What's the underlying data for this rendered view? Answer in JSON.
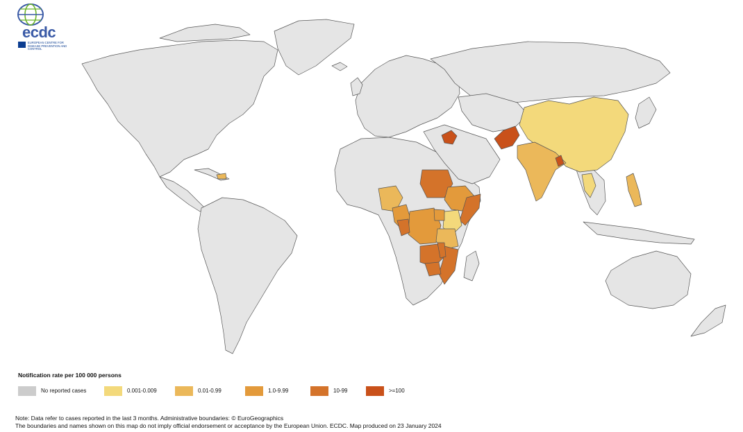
{
  "logo": {
    "name": "ecdc",
    "org_name": "EUROPEAN CENTRE FOR DISEASE PREVENTION AND CONTROL",
    "colors": {
      "text": "#3a5aa6",
      "accent": "#6bb42a",
      "flag": "#0b3d91"
    }
  },
  "legend": {
    "title": "Notification rate per 100 000 persons",
    "items": [
      {
        "label": "No reported cases",
        "color": "#cccccc"
      },
      {
        "label": "0.001-0.009",
        "color": "#f3d97b"
      },
      {
        "label": "0.01-0.99",
        "color": "#ebb85a"
      },
      {
        "label": "1.0-9.99",
        "color": "#e39a3b"
      },
      {
        "label": "10-99",
        "color": "#d4732a"
      },
      {
        "label": ">=100",
        "color": "#c9511a"
      }
    ]
  },
  "note": {
    "line1": "Note: Data refer to cases reported in the last 3 months. Administrative boundaries: © EuroGeographics",
    "line2": "The boundaries and names shown on this map do not imply official endorsement or acceptance by the European Union. ECDC. Map produced on 23 January 2024"
  },
  "map_colors": {
    "land": "#e5e5e5",
    "border": "#555555",
    "water": "#ffffff"
  }
}
